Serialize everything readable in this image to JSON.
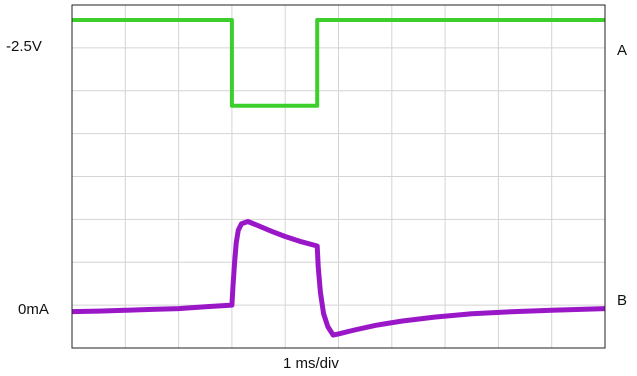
{
  "chart_data": {
    "type": "line",
    "title": "",
    "xlabel": "1 ms/div",
    "ylabel": "",
    "xlim": [
      0,
      10
    ],
    "x_unit": "div",
    "grid": true,
    "grid_divisions": {
      "x": 10,
      "y": 8
    },
    "annotations": {
      "ref_a": "-2.5V",
      "ref_b": "0mA",
      "channel_a": "A",
      "channel_b": "B"
    },
    "series": [
      {
        "name": "A",
        "color": "#3ccf2b",
        "ylim": [
          0,
          8
        ],
        "points": [
          [
            0,
            7.65
          ],
          [
            3.0,
            7.65
          ],
          [
            3.0,
            5.65
          ],
          [
            4.6,
            5.65
          ],
          [
            4.6,
            7.65
          ],
          [
            10,
            7.65
          ]
        ]
      },
      {
        "name": "B",
        "color": "#9a17c8",
        "ylim": [
          0,
          8
        ],
        "points": [
          [
            0,
            0.85
          ],
          [
            0.5,
            0.86
          ],
          [
            1.0,
            0.88
          ],
          [
            1.5,
            0.9
          ],
          [
            2.0,
            0.92
          ],
          [
            2.5,
            0.96
          ],
          [
            3.0,
            1.0
          ],
          [
            3.02,
            1.45
          ],
          [
            3.05,
            2.0
          ],
          [
            3.08,
            2.45
          ],
          [
            3.12,
            2.75
          ],
          [
            3.18,
            2.9
          ],
          [
            3.3,
            2.95
          ],
          [
            3.5,
            2.85
          ],
          [
            3.75,
            2.72
          ],
          [
            4.0,
            2.6
          ],
          [
            4.3,
            2.48
          ],
          [
            4.6,
            2.38
          ],
          [
            4.62,
            1.9
          ],
          [
            4.66,
            1.3
          ],
          [
            4.72,
            0.8
          ],
          [
            4.8,
            0.5
          ],
          [
            4.9,
            0.3
          ],
          [
            5.0,
            0.33
          ],
          [
            5.3,
            0.42
          ],
          [
            5.7,
            0.53
          ],
          [
            6.2,
            0.63
          ],
          [
            6.8,
            0.72
          ],
          [
            7.5,
            0.8
          ],
          [
            8.3,
            0.85
          ],
          [
            9.0,
            0.88
          ],
          [
            10,
            0.92
          ]
        ]
      }
    ]
  }
}
